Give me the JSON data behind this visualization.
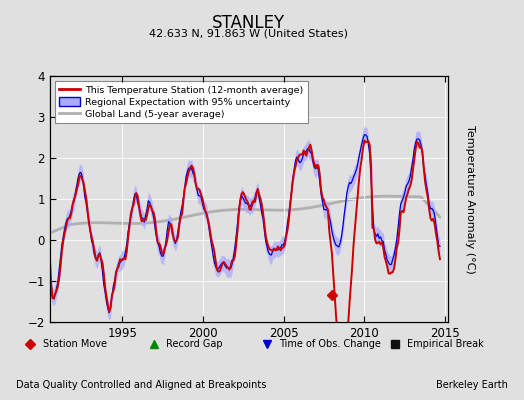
{
  "title": "STANLEY",
  "subtitle": "42.633 N, 91.863 W (United States)",
  "ylabel": "Temperature Anomaly (°C)",
  "xlim": [
    1990.5,
    2015.2
  ],
  "ylim": [
    -2.0,
    4.0
  ],
  "yticks": [
    -2,
    -1,
    0,
    1,
    2,
    3,
    4
  ],
  "xticks": [
    1995,
    2000,
    2005,
    2010,
    2015
  ],
  "background_color": "#e0e0e0",
  "plot_bg_color": "#e0e0e0",
  "legend_entries": [
    "This Temperature Station (12-month average)",
    "Regional Expectation with 95% uncertainty",
    "Global Land (5-year average)"
  ],
  "station_color": "#cc0000",
  "regional_color": "#0000cc",
  "regional_fill_color": "#aaaaff",
  "global_color": "#b0b0b0",
  "footer_left": "Data Quality Controlled and Aligned at Breakpoints",
  "footer_right": "Berkeley Earth",
  "marker_legend": [
    {
      "symbol": "D",
      "color": "#cc0000",
      "label": "Station Move"
    },
    {
      "symbol": "^",
      "color": "#008800",
      "label": "Record Gap"
    },
    {
      "symbol": "v",
      "color": "#0000cc",
      "label": "Time of Obs. Change"
    },
    {
      "symbol": "s",
      "color": "#111111",
      "label": "Empirical Break"
    }
  ],
  "station_move_x": 2008.0,
  "station_move_y": -1.35
}
